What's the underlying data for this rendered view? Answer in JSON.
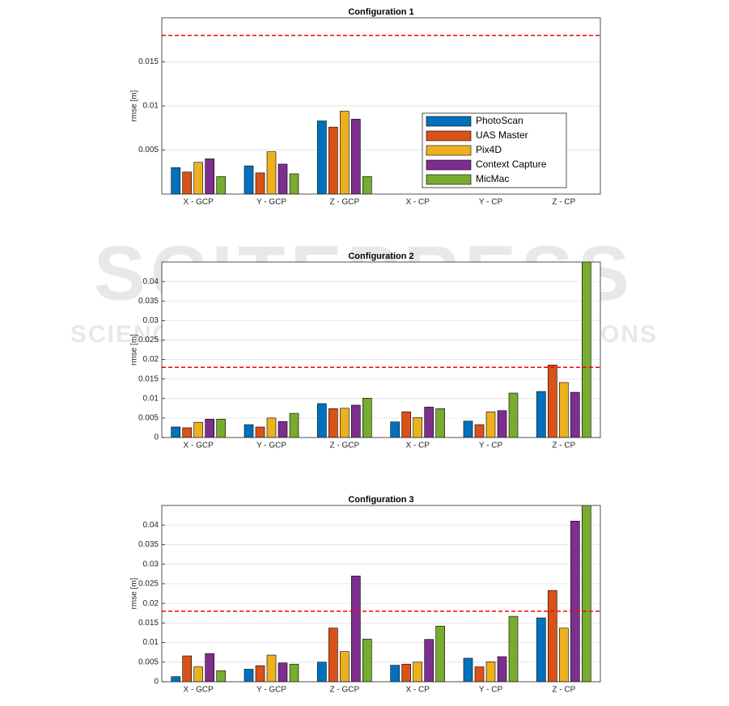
{
  "watermark": {
    "title": "SCITEPRESS",
    "subtitle": "SCIENCE AND TECHNOLOGY PUBLICATIONS"
  },
  "chart_data": [
    {
      "type": "bar",
      "title": "Configuration 1",
      "ylabel": "rmse [m]",
      "categories": [
        "X - GCP",
        "Y - GCP",
        "Z - GCP",
        "X - CP",
        "Y - CP",
        "Z - CP"
      ],
      "series": [
        {
          "name": "PhotoScan",
          "color": "#0072bd",
          "values": [
            0.003,
            0.0032,
            0.0083,
            null,
            null,
            null
          ]
        },
        {
          "name": "UAS Master",
          "color": "#d95319",
          "values": [
            0.0025,
            0.0024,
            0.0076,
            null,
            null,
            null
          ]
        },
        {
          "name": "Pix4D",
          "color": "#edb120",
          "values": [
            0.0036,
            0.0048,
            0.0094,
            null,
            null,
            null
          ]
        },
        {
          "name": "Context Capture",
          "color": "#7e2f8e",
          "values": [
            0.004,
            0.0034,
            0.0085,
            null,
            null,
            null
          ]
        },
        {
          "name": "MicMac",
          "color": "#77ac30",
          "values": [
            0.002,
            0.0023,
            0.002,
            null,
            null,
            null
          ]
        }
      ],
      "ylim": [
        0,
        0.02
      ],
      "yticks": [
        0.005,
        0.01,
        0.015
      ],
      "grid": true,
      "reference_line": {
        "value": 0.018,
        "color": "#ff0000"
      },
      "legend": "lower right"
    },
    {
      "type": "bar",
      "title": "Configuration 2",
      "ylabel": "rmse [m]",
      "categories": [
        "X - GCP",
        "Y - GCP",
        "Z - GCP",
        "X - CP",
        "Y - CP",
        "Z - CP"
      ],
      "series": [
        {
          "name": "PhotoScan",
          "color": "#0072bd",
          "values": [
            0.0027,
            0.0033,
            0.0087,
            0.004,
            0.0042,
            0.0118
          ]
        },
        {
          "name": "UAS Master",
          "color": "#d95319",
          "values": [
            0.0025,
            0.0027,
            0.0074,
            0.0066,
            0.0033,
            0.0186
          ]
        },
        {
          "name": "Pix4D",
          "color": "#edb120",
          "values": [
            0.0039,
            0.005,
            0.0075,
            0.0051,
            0.0066,
            0.0141
          ]
        },
        {
          "name": "Context Capture",
          "color": "#7e2f8e",
          "values": [
            0.0047,
            0.0041,
            0.0083,
            0.0078,
            0.0069,
            0.0116
          ]
        },
        {
          "name": "MicMac",
          "color": "#77ac30",
          "values": [
            0.0047,
            0.0062,
            0.0101,
            0.0074,
            0.0114,
            0.046
          ]
        }
      ],
      "ylim": [
        0,
        0.045
      ],
      "yticks": [
        0,
        0.005,
        0.01,
        0.015,
        0.02,
        0.025,
        0.03,
        0.035,
        0.04
      ],
      "grid": true,
      "reference_line": {
        "value": 0.018,
        "color": "#ff0000"
      }
    },
    {
      "type": "bar",
      "title": "Configuration 3",
      "ylabel": "rmse [m]",
      "categories": [
        "X - GCP",
        "Y - GCP",
        "Z - GCP",
        "X - CP",
        "Y - CP",
        "Z - CP"
      ],
      "series": [
        {
          "name": "PhotoScan",
          "color": "#0072bd",
          "values": [
            0.0013,
            0.0032,
            0.005,
            0.0042,
            0.006,
            0.0163
          ]
        },
        {
          "name": "UAS Master",
          "color": "#d95319",
          "values": [
            0.0066,
            0.0041,
            0.0137,
            0.0045,
            0.0038,
            0.0233
          ]
        },
        {
          "name": "Pix4D",
          "color": "#edb120",
          "values": [
            0.0038,
            0.0068,
            0.0077,
            0.005,
            0.0051,
            0.0137
          ]
        },
        {
          "name": "Context Capture",
          "color": "#7e2f8e",
          "values": [
            0.0072,
            0.0048,
            0.027,
            0.0108,
            0.0064,
            0.041
          ]
        },
        {
          "name": "MicMac",
          "color": "#77ac30",
          "values": [
            0.0028,
            0.0045,
            0.0109,
            0.0142,
            0.0167,
            0.046
          ]
        }
      ],
      "ylim": [
        0,
        0.045
      ],
      "yticks": [
        0,
        0.005,
        0.01,
        0.015,
        0.02,
        0.025,
        0.03,
        0.035,
        0.04
      ],
      "grid": true,
      "reference_line": {
        "value": 0.018,
        "color": "#ff0000"
      }
    }
  ]
}
